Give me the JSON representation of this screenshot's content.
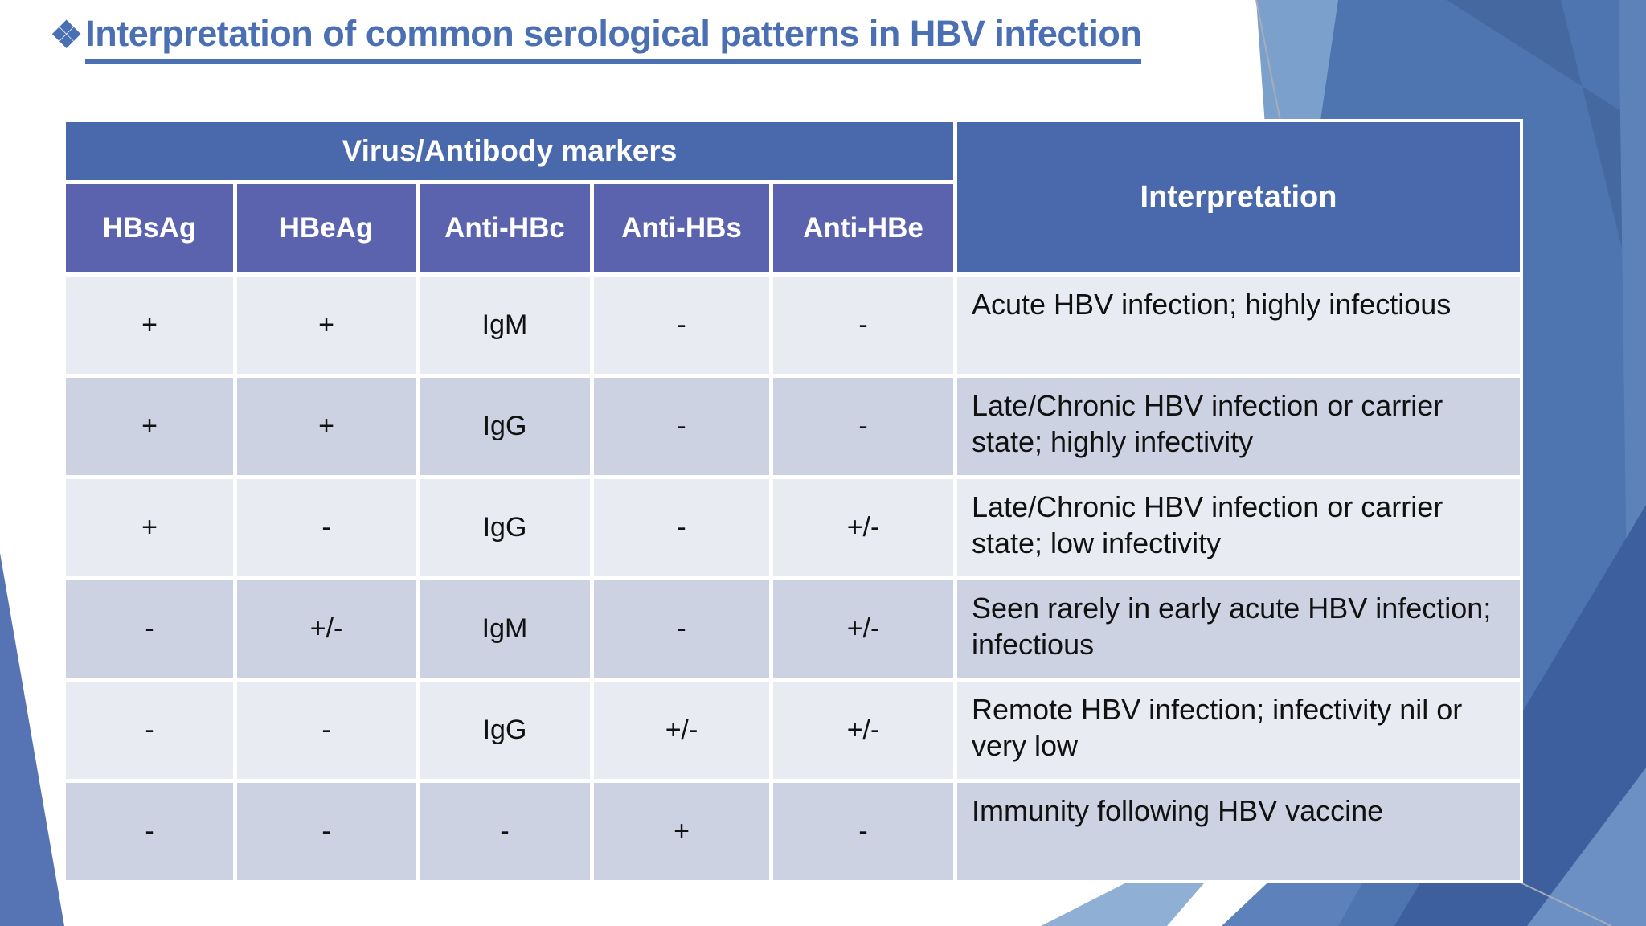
{
  "slide": {
    "bullet": "❖",
    "title": "Interpretation of common serological patterns in HBV infection"
  },
  "table": {
    "group_header": "Virus/Antibody markers",
    "interpretation_header": "Interpretation",
    "marker_columns": [
      "HBsAg",
      "HBeAg",
      "Anti-HBc",
      "Anti-HBs",
      "Anti-HBe"
    ],
    "rows": [
      {
        "markers": [
          "+",
          "+",
          "IgM",
          "-",
          "-"
        ],
        "interpretation": "Acute HBV infection; highly infectious"
      },
      {
        "markers": [
          "+",
          "+",
          "IgG",
          "-",
          "-"
        ],
        "interpretation": "Late/Chronic HBV infection or carrier state; highly infectivity"
      },
      {
        "markers": [
          "+",
          "-",
          "IgG",
          "-",
          "+/-"
        ],
        "interpretation": "Late/Chronic HBV infection or carrier state; low infectivity"
      },
      {
        "markers": [
          "-",
          "+/-",
          "IgM",
          "-",
          "+/-"
        ],
        "interpretation": "Seen rarely in early acute HBV infection; infectious"
      },
      {
        "markers": [
          "-",
          "-",
          "IgG",
          "+/-",
          "+/-"
        ],
        "interpretation": "Remote HBV infection; infectivity nil or very low"
      },
      {
        "markers": [
          "-",
          "-",
          "-",
          "+",
          "-"
        ],
        "interpretation": "Immunity following HBV vaccine"
      }
    ]
  },
  "colors": {
    "title_blue": "#4a6fb3",
    "header_blue": "#4a68ac",
    "subheader_purple": "#5b62ae",
    "row_light": "#e9ebf2",
    "row_dark": "#cdd2e3",
    "deco_main": "#4f75b1",
    "deco_light": "#7ba0cb",
    "deco_lighter": "#8fb0d4",
    "deco_dark": "#3d5f9e",
    "deco_mid_dark": "#44689f",
    "deco_bottom_left": "#5674b4",
    "text_dark": "#111111",
    "text_white": "#ffffff"
  }
}
